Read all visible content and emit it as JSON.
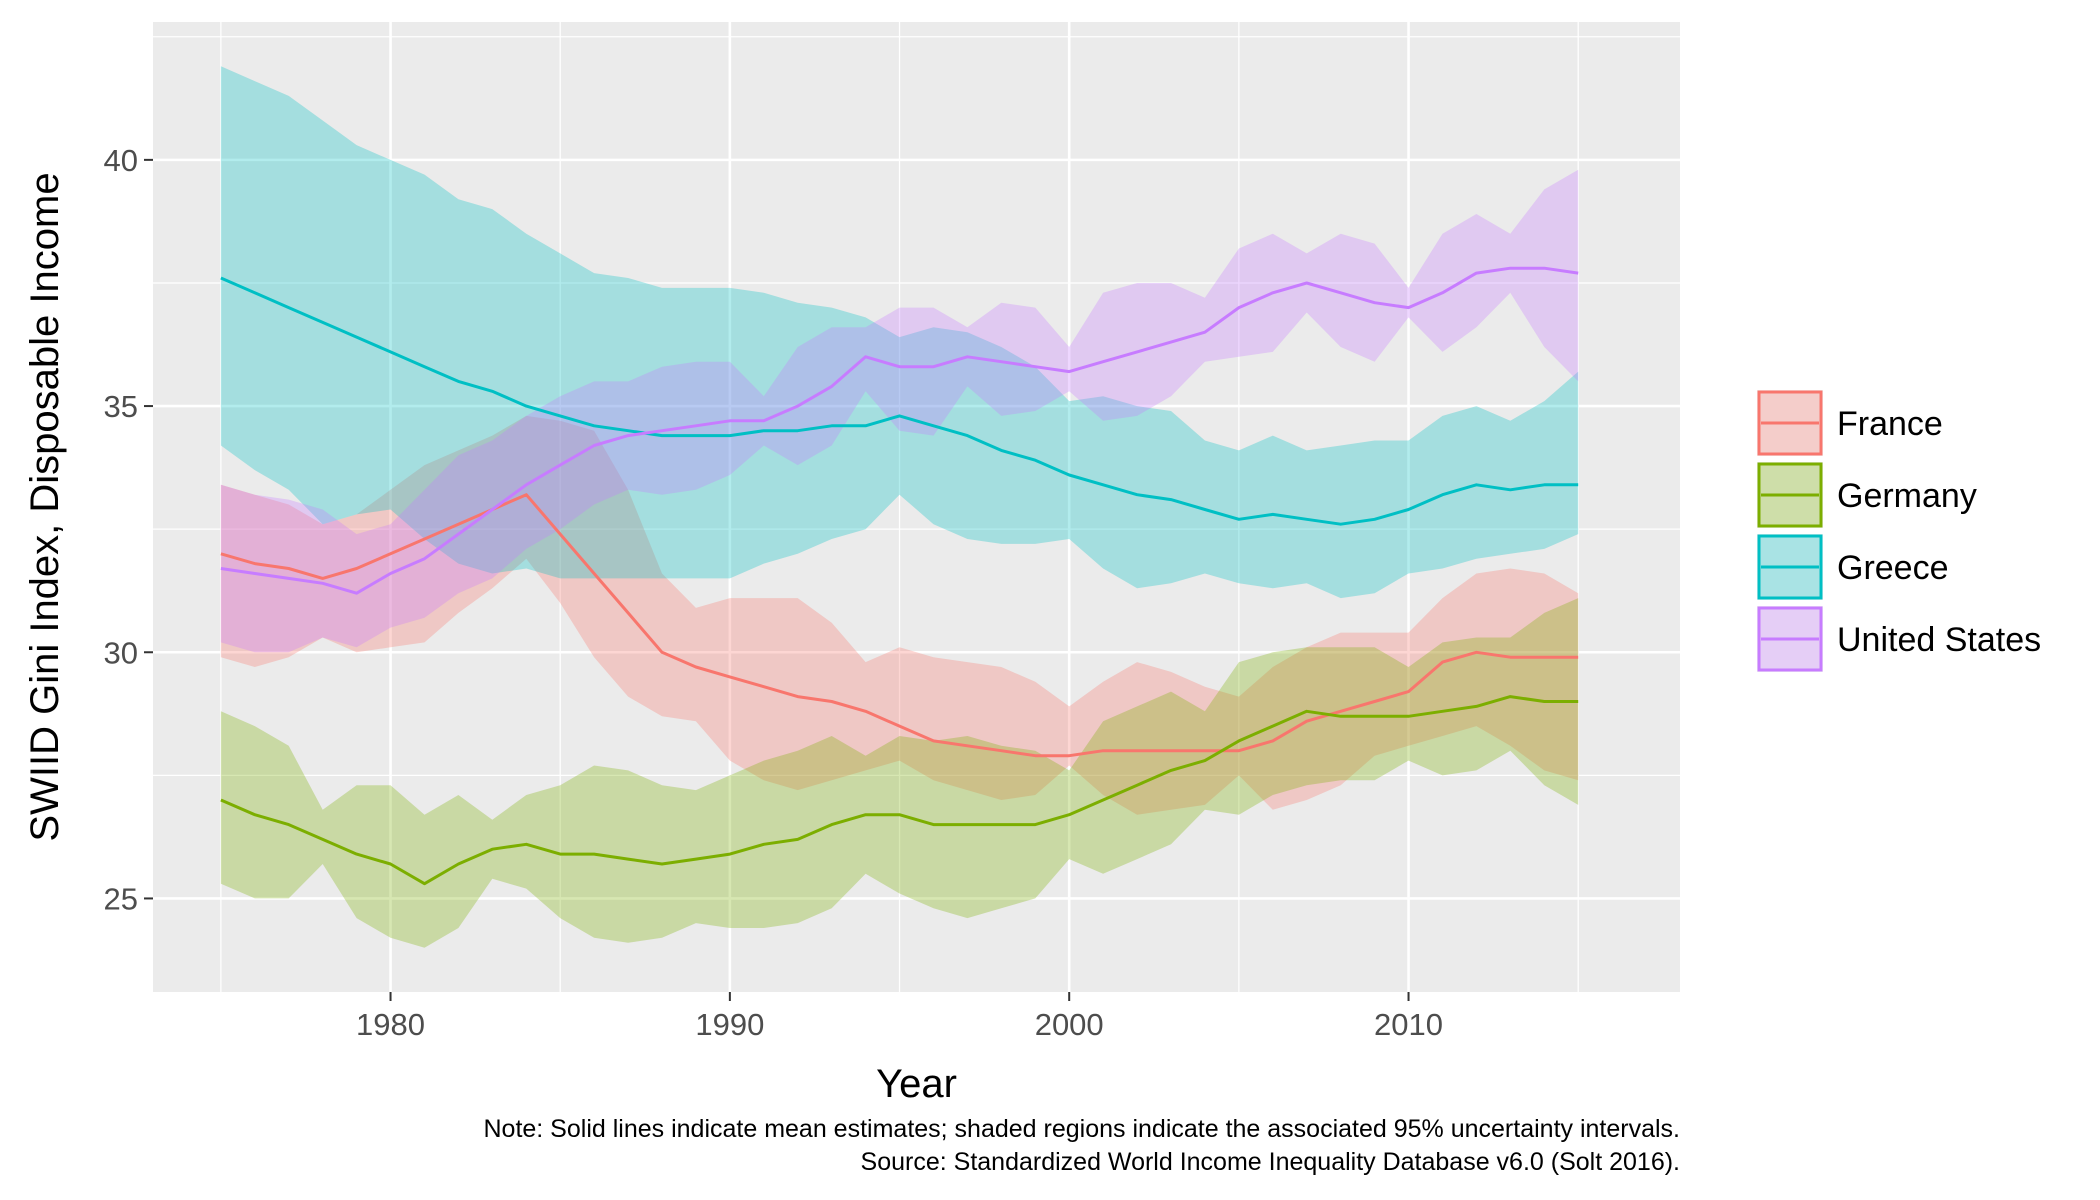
{
  "chart_data": {
    "type": "line",
    "xlabel": "Year",
    "ylabel": "SWIID Gini Index, Disposable Income",
    "xlim": [
      1973,
      2018
    ],
    "ylim": [
      23.1,
      42.8
    ],
    "xticks": [
      1980,
      1990,
      2000,
      2010
    ],
    "yticks": [
      25,
      30,
      35,
      40
    ],
    "grid": true,
    "legend_position": "right",
    "note": "Note: Solid lines indicate mean estimates; shaded regions indicate the associated 95% uncertainty intervals.",
    "source": "Source: Standardized World Income Inequality Database v6.0 (Solt 2016).",
    "x": [
      1975,
      1976,
      1977,
      1978,
      1979,
      1980,
      1981,
      1982,
      1983,
      1984,
      1985,
      1986,
      1987,
      1988,
      1989,
      1990,
      1991,
      1992,
      1993,
      1994,
      1995,
      1996,
      1997,
      1998,
      1999,
      2000,
      2001,
      2002,
      2003,
      2004,
      2005,
      2006,
      2007,
      2008,
      2009,
      2010,
      2011,
      2012,
      2013,
      2014,
      2015
    ],
    "series": [
      {
        "name": "France",
        "color": "#F8766D",
        "values": [
          32.0,
          31.8,
          31.7,
          31.5,
          31.7,
          32.0,
          32.3,
          32.6,
          32.9,
          33.2,
          32.4,
          31.6,
          30.8,
          30.0,
          29.7,
          29.5,
          29.3,
          29.1,
          29.0,
          28.8,
          28.5,
          28.2,
          28.1,
          28.0,
          27.9,
          27.9,
          28.0,
          28.0,
          28.0,
          28.0,
          28.0,
          28.2,
          28.6,
          28.8,
          29.0,
          29.2,
          29.8,
          30.0,
          29.9,
          29.9,
          29.9
        ],
        "lower": [
          29.9,
          29.7,
          29.9,
          30.3,
          30.0,
          30.1,
          30.2,
          30.8,
          31.3,
          31.9,
          31.0,
          29.9,
          29.1,
          28.7,
          28.6,
          27.8,
          27.4,
          27.2,
          27.4,
          27.6,
          27.8,
          27.4,
          27.2,
          27.0,
          27.1,
          27.7,
          27.1,
          26.7,
          26.8,
          26.9,
          27.5,
          26.8,
          27.0,
          27.3,
          27.9,
          28.1,
          28.3,
          28.5,
          28.1,
          27.6,
          27.4
        ],
        "upper": [
          33.4,
          33.2,
          33.0,
          32.6,
          32.8,
          33.3,
          33.8,
          34.1,
          34.4,
          34.8,
          34.7,
          34.5,
          33.3,
          31.6,
          30.9,
          31.1,
          31.1,
          31.1,
          30.6,
          29.8,
          30.1,
          29.9,
          29.8,
          29.7,
          29.4,
          28.9,
          29.4,
          29.8,
          29.6,
          29.3,
          29.1,
          29.7,
          30.1,
          30.4,
          30.4,
          30.4,
          31.1,
          31.6,
          31.7,
          31.6,
          31.2
        ]
      },
      {
        "name": "Germany",
        "color": "#7CAE00",
        "values": [
          27.0,
          26.7,
          26.5,
          26.2,
          25.9,
          25.7,
          25.3,
          25.7,
          26.0,
          26.1,
          25.9,
          25.9,
          25.8,
          25.7,
          25.8,
          25.9,
          26.1,
          26.2,
          26.5,
          26.7,
          26.7,
          26.5,
          26.5,
          26.5,
          26.5,
          26.7,
          27.0,
          27.3,
          27.6,
          27.8,
          28.2,
          28.5,
          28.8,
          28.7,
          28.7,
          28.7,
          28.8,
          28.9,
          29.1,
          29.0,
          29.0
        ],
        "lower": [
          25.3,
          25.0,
          25.0,
          25.7,
          24.6,
          24.2,
          24.0,
          24.4,
          25.4,
          25.2,
          24.6,
          24.2,
          24.1,
          24.2,
          24.5,
          24.4,
          24.4,
          24.5,
          24.8,
          25.5,
          25.1,
          24.8,
          24.6,
          24.8,
          25.0,
          25.8,
          25.5,
          25.8,
          26.1,
          26.8,
          26.7,
          27.1,
          27.3,
          27.4,
          27.4,
          27.8,
          27.5,
          27.6,
          28.0,
          27.3,
          26.9
        ],
        "upper": [
          28.8,
          28.5,
          28.1,
          26.8,
          27.3,
          27.3,
          26.7,
          27.1,
          26.6,
          27.1,
          27.3,
          27.7,
          27.6,
          27.3,
          27.2,
          27.5,
          27.8,
          28.0,
          28.3,
          27.9,
          28.3,
          28.2,
          28.3,
          28.1,
          28.0,
          27.6,
          28.6,
          28.9,
          29.2,
          28.8,
          29.8,
          30.0,
          30.1,
          30.1,
          30.1,
          29.7,
          30.2,
          30.3,
          30.3,
          30.8,
          31.1
        ]
      },
      {
        "name": "Greece",
        "color": "#00BFC4",
        "values": [
          37.6,
          37.3,
          37.0,
          36.7,
          36.4,
          36.1,
          35.8,
          35.5,
          35.3,
          35.0,
          34.8,
          34.6,
          34.5,
          34.4,
          34.4,
          34.4,
          34.5,
          34.5,
          34.6,
          34.6,
          34.8,
          34.6,
          34.4,
          34.1,
          33.9,
          33.6,
          33.4,
          33.2,
          33.1,
          32.9,
          32.7,
          32.8,
          32.7,
          32.6,
          32.7,
          32.9,
          33.2,
          33.4,
          33.3,
          33.4,
          33.4
        ],
        "lower": [
          34.2,
          33.7,
          33.3,
          32.6,
          32.8,
          32.9,
          32.3,
          31.8,
          31.6,
          31.7,
          31.5,
          31.5,
          31.5,
          31.5,
          31.5,
          31.5,
          31.8,
          32.0,
          32.3,
          32.5,
          33.2,
          32.6,
          32.3,
          32.2,
          32.2,
          32.3,
          31.7,
          31.3,
          31.4,
          31.6,
          31.4,
          31.3,
          31.4,
          31.1,
          31.2,
          31.6,
          31.7,
          31.9,
          32.0,
          32.1,
          32.4
        ],
        "upper": [
          41.9,
          41.6,
          41.3,
          40.8,
          40.3,
          40.0,
          39.7,
          39.2,
          39.0,
          38.5,
          38.1,
          37.7,
          37.6,
          37.4,
          37.4,
          37.4,
          37.3,
          37.1,
          37.0,
          36.8,
          36.4,
          36.6,
          36.5,
          36.2,
          35.8,
          35.1,
          35.2,
          35.0,
          34.9,
          34.3,
          34.1,
          34.4,
          34.1,
          34.2,
          34.3,
          34.3,
          34.8,
          35.0,
          34.7,
          35.1,
          35.7
        ]
      },
      {
        "name": "United States",
        "color": "#C77CFF",
        "values": [
          31.7,
          31.6,
          31.5,
          31.4,
          31.2,
          31.6,
          31.9,
          32.4,
          32.9,
          33.4,
          33.8,
          34.2,
          34.4,
          34.5,
          34.6,
          34.7,
          34.7,
          35.0,
          35.4,
          36.0,
          35.8,
          35.8,
          36.0,
          35.9,
          35.8,
          35.7,
          35.9,
          36.1,
          36.3,
          36.5,
          37.0,
          37.3,
          37.5,
          37.3,
          37.1,
          37.0,
          37.3,
          37.7,
          37.8,
          37.8,
          37.7
        ],
        "lower": [
          30.2,
          30.0,
          30.0,
          30.3,
          30.1,
          30.5,
          30.7,
          31.2,
          31.5,
          32.1,
          32.5,
          33.0,
          33.3,
          33.2,
          33.3,
          33.6,
          34.2,
          33.8,
          34.2,
          35.3,
          34.5,
          34.4,
          35.4,
          34.8,
          34.9,
          35.3,
          34.7,
          34.8,
          35.2,
          35.9,
          36.0,
          36.1,
          36.9,
          36.2,
          35.9,
          36.8,
          36.1,
          36.6,
          37.3,
          36.2,
          35.5
        ],
        "upper": [
          33.4,
          33.2,
          33.1,
          32.9,
          32.4,
          32.6,
          33.3,
          34.0,
          34.3,
          34.8,
          35.2,
          35.5,
          35.5,
          35.8,
          35.9,
          35.9,
          35.2,
          36.2,
          36.6,
          36.6,
          37.0,
          37.0,
          36.6,
          37.1,
          37.0,
          36.2,
          37.3,
          37.5,
          37.5,
          37.2,
          38.2,
          38.5,
          38.1,
          38.5,
          38.3,
          37.4,
          38.5,
          38.9,
          38.5,
          39.4,
          39.8
        ]
      }
    ]
  }
}
